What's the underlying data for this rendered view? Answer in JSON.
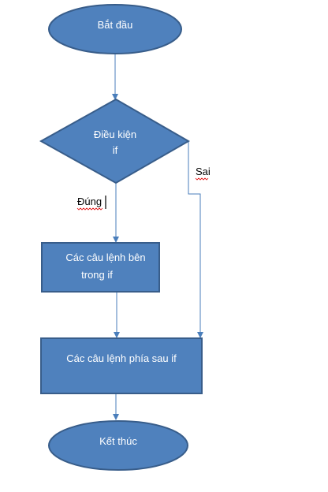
{
  "flowchart": {
    "start_label": "Bắt đầu",
    "condition_line1": "Điều kiện",
    "condition_line2": "if",
    "true_label": "Đúng",
    "false_label": "Sai",
    "inside_line1": "Các câu lệnh bên",
    "inside_line2": "trong if",
    "after_label": "Các câu lệnh phía sau if",
    "end_label": "Kết thúc"
  },
  "colors": {
    "shape_fill": "#4f81bd",
    "shape_border": "#385d8a",
    "connector": "#4a7ebb",
    "text_on_shape": "#ffffff"
  }
}
